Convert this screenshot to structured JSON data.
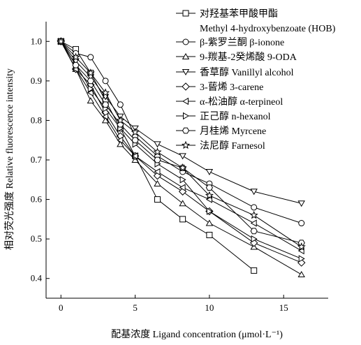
{
  "chart_data": {
    "type": "line",
    "xlabel": "配基浓度 Ligand concentration (μmol·L⁻¹)",
    "ylabel": "相对荧光强度 Relative fluorescence intensity",
    "xlim": [
      -1,
      18
    ],
    "ylim": [
      0.35,
      1.05
    ],
    "xticks": [
      0,
      5,
      10,
      15
    ],
    "yticks": [
      0.4,
      0.5,
      0.6,
      0.7,
      0.8,
      0.9,
      1.0
    ],
    "ytick_labels": [
      "0.4",
      "0.5",
      "0.6",
      "0.7",
      "0.8",
      "0.9",
      "1.0"
    ],
    "legend_position": "top-right",
    "series": [
      {
        "name": "对羟基苯甲酸甲酯 Methyl 4-hydroxybenzoate (HOB)",
        "marker": "square",
        "x": [
          0,
          1,
          2,
          3,
          4,
          5,
          6.5,
          8.2,
          10,
          13
        ],
        "values": [
          1.0,
          0.98,
          0.92,
          0.85,
          0.78,
          0.71,
          0.6,
          0.55,
          0.51,
          0.42
        ]
      },
      {
        "name": "β-紫罗兰酮 β-ionone",
        "marker": "circle",
        "x": [
          0,
          1,
          2,
          3,
          4,
          5,
          6.5,
          8.2,
          10,
          13,
          16.2
        ],
        "values": [
          1.0,
          0.97,
          0.96,
          0.9,
          0.84,
          0.76,
          0.71,
          0.67,
          0.64,
          0.58,
          0.54
        ]
      },
      {
        "name": "9-羰基-2癸烯酸 9-ODA",
        "marker": "triangle-up",
        "x": [
          0,
          1,
          2,
          3,
          4,
          5,
          6.5,
          8.2,
          10,
          13,
          16.2
        ],
        "values": [
          1.0,
          0.93,
          0.85,
          0.8,
          0.74,
          0.7,
          0.64,
          0.59,
          0.54,
          0.48,
          0.41
        ]
      },
      {
        "name": "香草醇 Vanillyl alcohol",
        "marker": "triangle-down",
        "x": [
          0,
          1,
          2,
          3,
          4,
          5,
          6.5,
          8.2,
          10,
          13,
          16.2
        ],
        "values": [
          1.0,
          0.95,
          0.91,
          0.86,
          0.81,
          0.78,
          0.74,
          0.71,
          0.67,
          0.62,
          0.59
        ]
      },
      {
        "name": "3-蒈烯 3-carene",
        "marker": "diamond",
        "x": [
          0,
          1,
          2,
          3,
          4,
          5,
          6.5,
          8.2,
          10,
          13,
          16.2
        ],
        "values": [
          1.0,
          0.93,
          0.89,
          0.82,
          0.76,
          0.71,
          0.66,
          0.62,
          0.57,
          0.49,
          0.44
        ]
      },
      {
        "name": "α-松油醇 α-terpineol",
        "marker": "triangle-left",
        "x": [
          0,
          1,
          2,
          3,
          4,
          5,
          6.5,
          8.2,
          10,
          13,
          16.2
        ],
        "values": [
          1.0,
          0.93,
          0.87,
          0.81,
          0.75,
          0.71,
          0.67,
          0.63,
          0.6,
          0.54,
          0.47
        ]
      },
      {
        "name": "正己醇 n-hexanol",
        "marker": "triangle-right",
        "x": [
          0,
          1,
          2,
          3,
          4,
          5,
          6.5,
          8.2,
          10,
          13,
          16.2
        ],
        "values": [
          1.0,
          0.94,
          0.88,
          0.83,
          0.78,
          0.74,
          0.69,
          0.65,
          0.57,
          0.5,
          0.45
        ]
      },
      {
        "name": "月桂烯 Myrcene",
        "marker": "hexagon",
        "x": [
          0,
          1,
          2,
          3,
          4,
          5,
          6.5,
          8.2,
          10,
          13,
          16.2
        ],
        "values": [
          1.0,
          0.94,
          0.9,
          0.84,
          0.79,
          0.75,
          0.7,
          0.68,
          0.63,
          0.52,
          0.49
        ]
      },
      {
        "name": "法尼醇 Farnesol",
        "marker": "star",
        "x": [
          0,
          1,
          2,
          3,
          4,
          5,
          6.5,
          8.2,
          10,
          13,
          16.2
        ],
        "values": [
          1.0,
          0.96,
          0.92,
          0.87,
          0.8,
          0.77,
          0.72,
          0.68,
          0.61,
          0.56,
          0.48
        ]
      }
    ]
  }
}
